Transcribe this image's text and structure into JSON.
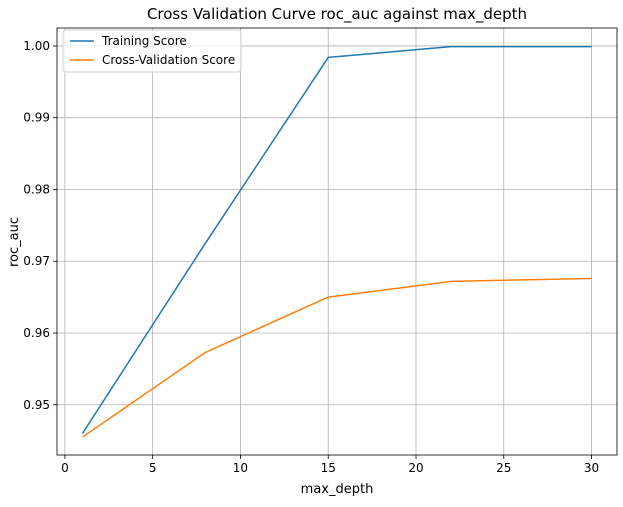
{
  "chart_data": {
    "type": "line",
    "title": "Cross Validation Curve roc_auc against max_depth",
    "xlabel": "max_depth",
    "ylabel": "roc_auc",
    "x": [
      1,
      8,
      15,
      22,
      30
    ],
    "series": [
      {
        "name": "Training Score",
        "color": "#1f77b4",
        "values": [
          0.946,
          0.9725,
          0.9984,
          0.9999,
          0.9999
        ]
      },
      {
        "name": "Cross-Validation Score",
        "color": "#ff7f0e",
        "values": [
          0.9455,
          0.9573,
          0.965,
          0.9672,
          0.9676
        ]
      }
    ],
    "xlim": [
      -0.45,
      31.45
    ],
    "ylim": [
      0.943,
      1.0025
    ],
    "xticks": [
      0,
      5,
      10,
      15,
      20,
      25,
      30
    ],
    "xtick_labels": [
      "0",
      "5",
      "10",
      "15",
      "20",
      "25",
      "30"
    ],
    "yticks": [
      0.95,
      0.96,
      0.97,
      0.98,
      0.99,
      1.0
    ],
    "ytick_labels": [
      "0.95",
      "0.96",
      "0.97",
      "0.98",
      "0.99",
      "1.00"
    ],
    "grid": true,
    "legend_position": "top-left"
  }
}
